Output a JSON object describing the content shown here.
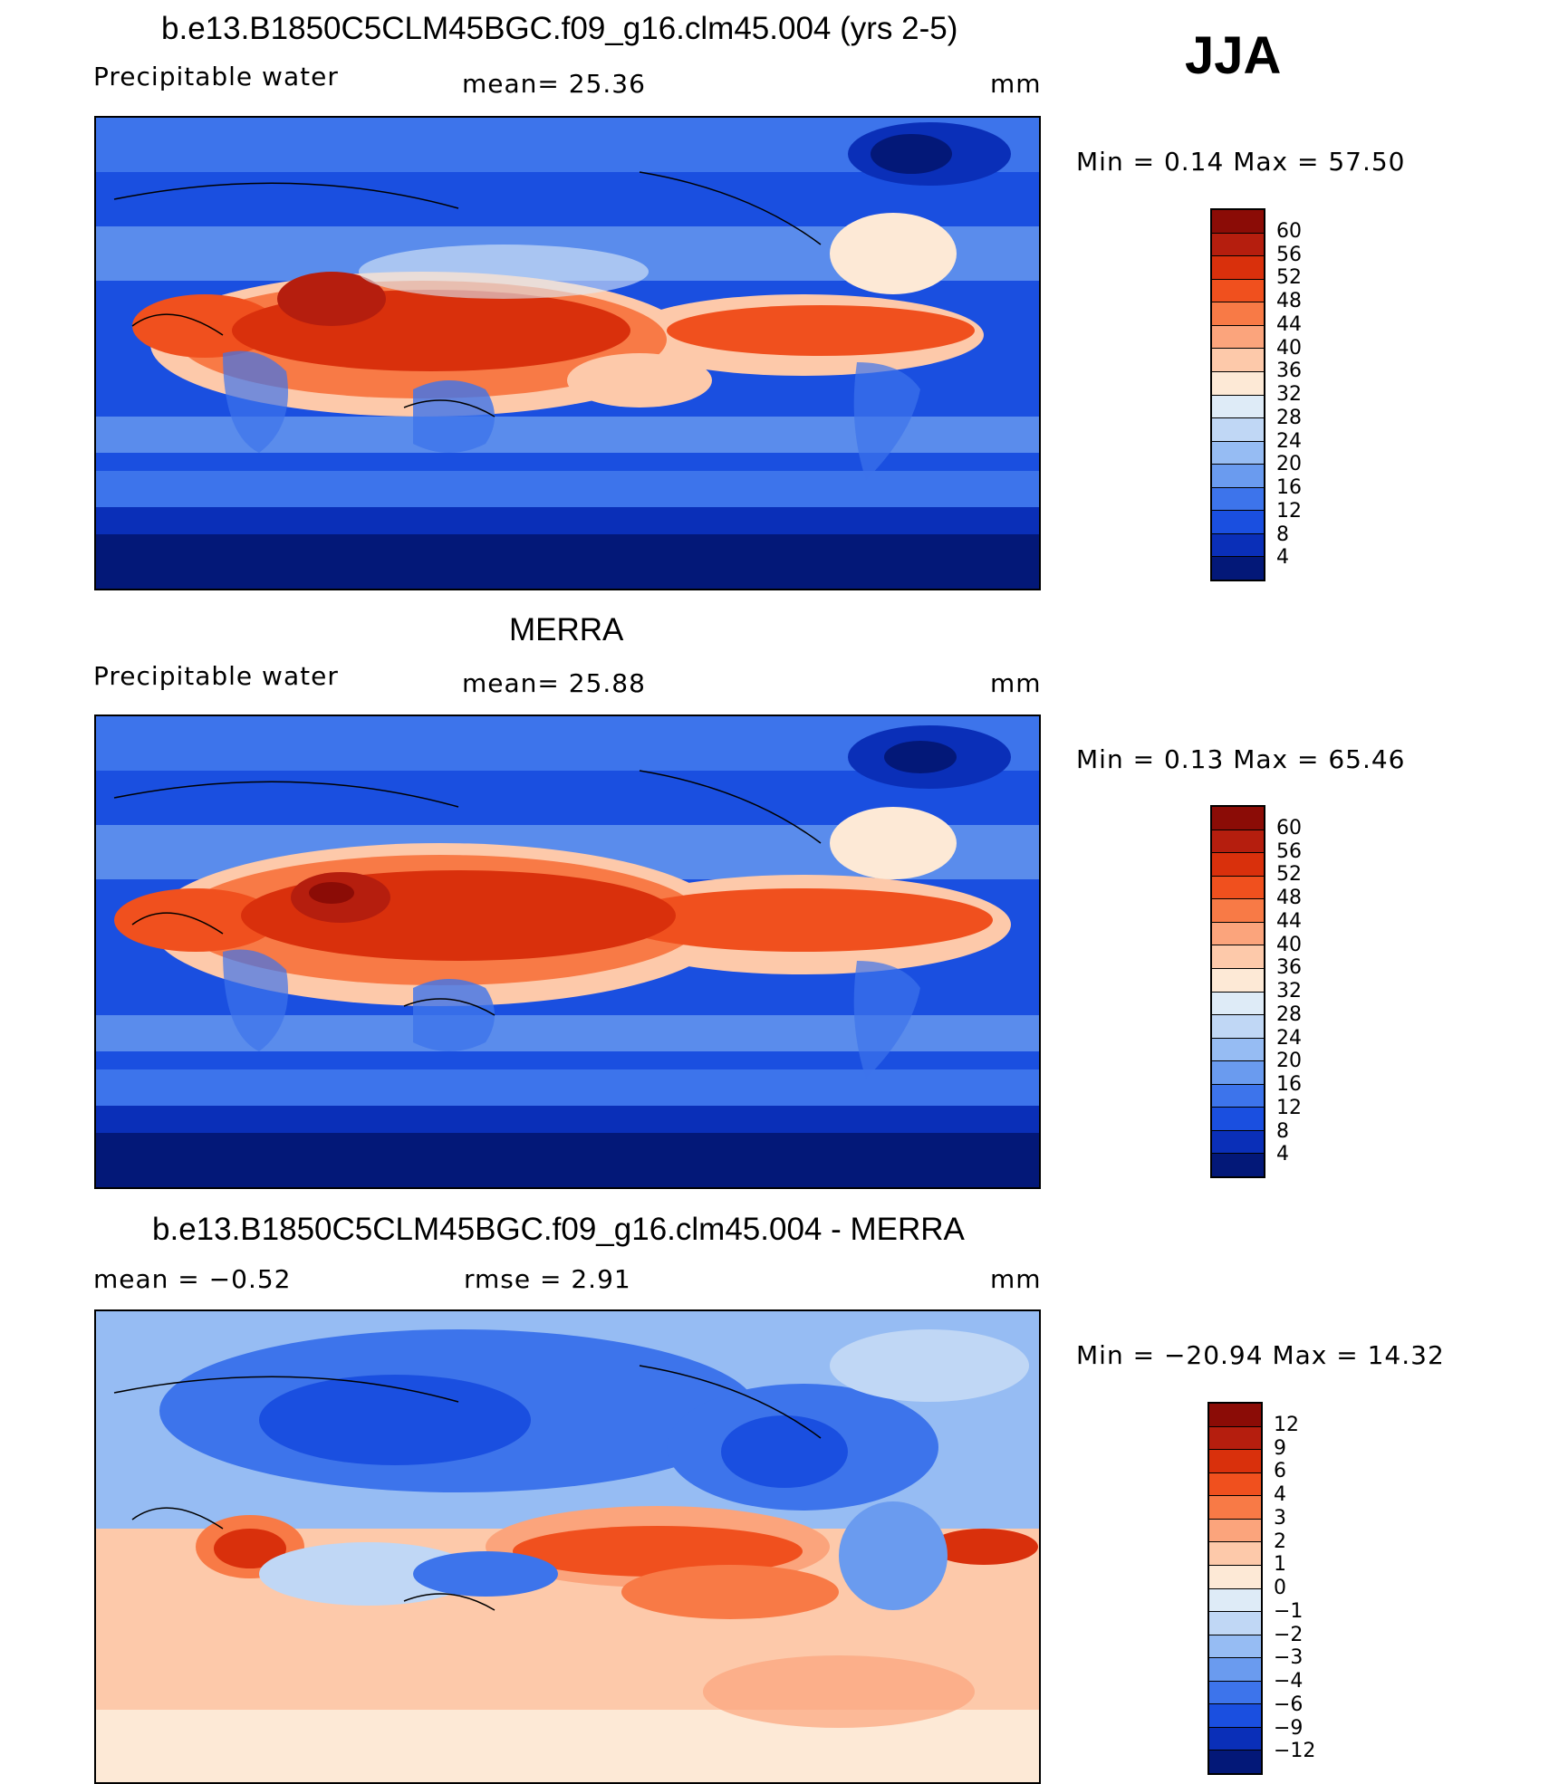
{
  "season": "JJA",
  "panels": [
    {
      "title": "b.e13.B1850C5CLM45BGC.f09_g16.clm45.004 (yrs 2-5)",
      "left_label": "Precipitable  water",
      "mid_label": "mean=   25.36",
      "units": "mm",
      "minmax": "Min  =    0.14  Max  =    57.50",
      "colorbar": {
        "labels": [
          "60",
          "56",
          "52",
          "48",
          "44",
          "40",
          "36",
          "32",
          "28",
          "24",
          "20",
          "16",
          "12",
          "8",
          "4"
        ],
        "colors": [
          "#8b0c06",
          "#b51e0e",
          "#d9300c",
          "#f0501e",
          "#f87a46",
          "#fba47c",
          "#fdc9aa",
          "#fde9d6",
          "#deebf7",
          "#c0d7f5",
          "#96bcf3",
          "#6a9bef",
          "#3d74eb",
          "#1a4fe0",
          "#0a2fb8",
          "#031878"
        ]
      },
      "chart_data": {
        "type": "heatmap",
        "field": "Precipitable water",
        "mean": 25.36,
        "min": 0.14,
        "max": 57.5,
        "units": "mm",
        "contour_levels": [
          4,
          8,
          12,
          16,
          20,
          24,
          28,
          32,
          36,
          40,
          44,
          48,
          52,
          56,
          60
        ]
      }
    },
    {
      "title": "MERRA",
      "left_label": "Precipitable  water",
      "mid_label": "mean=   25.88",
      "units": "mm",
      "minmax": "Min  =    0.13  Max  =    65.46",
      "colorbar": {
        "labels": [
          "60",
          "56",
          "52",
          "48",
          "44",
          "40",
          "36",
          "32",
          "28",
          "24",
          "20",
          "16",
          "12",
          "8",
          "4"
        ],
        "colors": [
          "#8b0c06",
          "#b51e0e",
          "#d9300c",
          "#f0501e",
          "#f87a46",
          "#fba47c",
          "#fdc9aa",
          "#fde9d6",
          "#deebf7",
          "#c0d7f5",
          "#96bcf3",
          "#6a9bef",
          "#3d74eb",
          "#1a4fe0",
          "#0a2fb8",
          "#031878"
        ]
      },
      "chart_data": {
        "type": "heatmap",
        "field": "Precipitable water",
        "mean": 25.88,
        "min": 0.13,
        "max": 65.46,
        "units": "mm",
        "contour_levels": [
          4,
          8,
          12,
          16,
          20,
          24,
          28,
          32,
          36,
          40,
          44,
          48,
          52,
          56,
          60
        ]
      }
    },
    {
      "title": "b.e13.B1850C5CLM45BGC.f09_g16.clm45.004 - MERRA",
      "left_label": "mean  =    −0.52",
      "mid_label": "rmse  =     2.91",
      "units": "mm",
      "minmax": "Min  = −20.94  Max  =    14.32",
      "colorbar": {
        "labels": [
          "12",
          "9",
          "6",
          "4",
          "3",
          "2",
          "1",
          "0",
          "−1",
          "−2",
          "−3",
          "−4",
          "−6",
          "−9",
          "−12"
        ],
        "colors": [
          "#8b0c06",
          "#b51e0e",
          "#d9300c",
          "#f0501e",
          "#f87a46",
          "#fba47c",
          "#fdc9aa",
          "#fde9d6",
          "#deebf7",
          "#c0d7f5",
          "#96bcf3",
          "#6a9bef",
          "#3d74eb",
          "#1a4fe0",
          "#0a2fb8",
          "#031878"
        ]
      },
      "chart_data": {
        "type": "heatmap",
        "field": "Precipitable water difference",
        "mean": -0.52,
        "rmse": 2.91,
        "min": -20.94,
        "max": 14.32,
        "units": "mm",
        "contour_levels": [
          -12,
          -9,
          -6,
          -4,
          -3,
          -2,
          -1,
          0,
          1,
          2,
          3,
          4,
          6,
          9,
          12
        ]
      }
    }
  ]
}
